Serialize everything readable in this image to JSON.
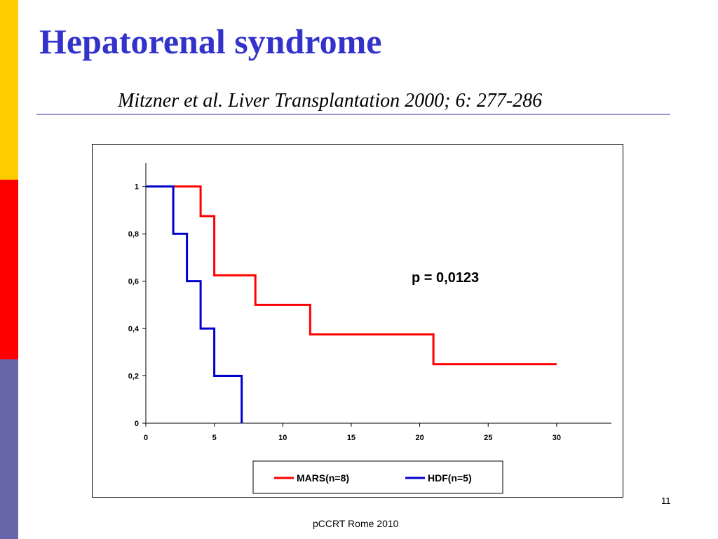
{
  "slide": {
    "title": "Hepatorenal syndrome",
    "citation": "Mitzner et al. Liver Transplantation 2000; 6: 277-286",
    "page_number": "11",
    "footer": "pCCRT Rome 2010"
  },
  "colors": {
    "title": "#3333cc",
    "sidebar": [
      "#ffcc00",
      "#ff0000",
      "#6666aa"
    ],
    "rule": "#9999cc"
  },
  "chart_data": {
    "type": "line",
    "step": true,
    "title": "",
    "xlabel": "",
    "ylabel": "",
    "xlim": [
      0,
      34
    ],
    "ylim": [
      0,
      1.1
    ],
    "x_ticks": [
      0,
      5,
      10,
      15,
      20,
      25,
      30
    ],
    "x_tick_labels": [
      "0",
      "5",
      "10",
      "15",
      "20",
      "25",
      "30"
    ],
    "y_ticks": [
      0,
      0.2,
      0.4,
      0.6,
      0.8,
      1
    ],
    "y_tick_labels": [
      "0",
      "0,2",
      "0,4",
      "0,6",
      "0,8",
      "1"
    ],
    "grid": false,
    "legend_position": "bottom",
    "annotation": "p = 0,0123",
    "series": [
      {
        "name": "MARS(n=8)",
        "color": "#ff0000",
        "x": [
          2,
          4,
          4,
          5,
          5,
          8,
          8,
          12,
          12,
          21,
          21,
          30
        ],
        "y": [
          1,
          1,
          0.875,
          0.875,
          0.625,
          0.625,
          0.5,
          0.5,
          0.375,
          0.375,
          0.25,
          0.25
        ]
      },
      {
        "name": "HDF(n=5)",
        "color": "#0000cc",
        "x": [
          0,
          2,
          2,
          3,
          3,
          4,
          4,
          5,
          5,
          7,
          7
        ],
        "y": [
          1,
          1,
          0.8,
          0.8,
          0.6,
          0.6,
          0.4,
          0.4,
          0.2,
          0.2,
          0
        ]
      }
    ]
  }
}
